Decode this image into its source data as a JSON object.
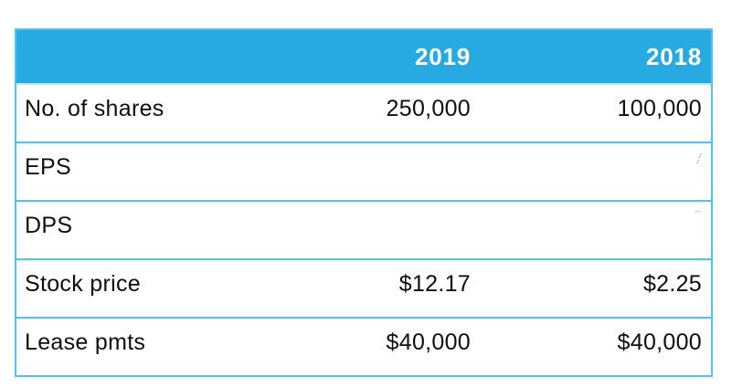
{
  "table": {
    "header": {
      "label": "",
      "y2019": "2019",
      "y2018": "2018"
    },
    "rows": [
      {
        "label": "No. of shares",
        "y2019": "250,000",
        "y2018": "100,000"
      },
      {
        "label": "EPS",
        "y2019": "",
        "y2018": ""
      },
      {
        "label": "DPS",
        "y2019": "",
        "y2018": ""
      },
      {
        "label": "Stock price",
        "y2019": "$12.17",
        "y2018": "$2.25"
      },
      {
        "label": "Lease pmts",
        "y2019": "$40,000",
        "y2018": "$40,000"
      }
    ],
    "colors": {
      "header_bg": "#27aae1",
      "border": "#4ec4ef",
      "header_text": "#ffffff",
      "body_text": "#0e0e0e"
    }
  },
  "chart_data": {
    "type": "table",
    "title": "",
    "columns": [
      "",
      "2019",
      "2018"
    ],
    "rows": [
      [
        "No. of shares",
        "250,000",
        "100,000"
      ],
      [
        "EPS",
        "",
        ""
      ],
      [
        "DPS",
        "",
        ""
      ],
      [
        "Stock price",
        "$12.17",
        "$2.25"
      ],
      [
        "Lease pmts",
        "$40,000",
        "$40,000"
      ]
    ]
  }
}
